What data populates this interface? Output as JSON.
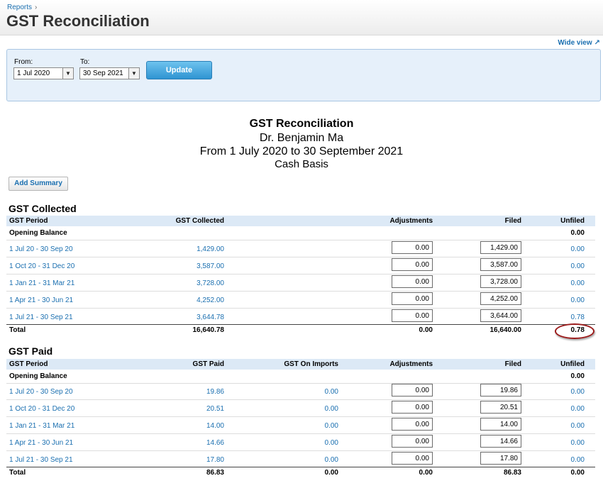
{
  "header": {
    "breadcrumb": "Reports",
    "breadcrumb_sep": "›",
    "title": "GST Reconciliation",
    "wide_view": "Wide view"
  },
  "filters": {
    "from_label": "From:",
    "from_value": "1 Jul 2020",
    "to_label": "To:",
    "to_value": "30 Sep 2021",
    "update_label": "Update"
  },
  "report": {
    "title": "GST Reconciliation",
    "org": "Dr. Benjamin Ma",
    "period": "From 1 July 2020 to 30 September 2021",
    "basis": "Cash Basis"
  },
  "add_summary": "Add Summary",
  "collected": {
    "title": "GST Collected",
    "columns": [
      "GST Period",
      "GST Collected",
      "Adjustments",
      "Filed",
      "Unfiled"
    ],
    "opening": {
      "label": "Opening Balance",
      "unfiled": "0.00"
    },
    "rows": [
      {
        "period": "1 Jul 20 - 30 Sep 20",
        "amount": "1,429.00",
        "adjustments": "0.00",
        "filed": "1,429.00",
        "unfiled": "0.00"
      },
      {
        "period": "1 Oct 20 - 31 Dec 20",
        "amount": "3,587.00",
        "adjustments": "0.00",
        "filed": "3,587.00",
        "unfiled": "0.00"
      },
      {
        "period": "1 Jan 21 - 31 Mar 21",
        "amount": "3,728.00",
        "adjustments": "0.00",
        "filed": "3,728.00",
        "unfiled": "0.00"
      },
      {
        "period": "1 Apr 21 - 30 Jun 21",
        "amount": "4,252.00",
        "adjustments": "0.00",
        "filed": "4,252.00",
        "unfiled": "0.00"
      },
      {
        "period": "1 Jul 21 - 30 Sep 21",
        "amount": "3,644.78",
        "adjustments": "0.00",
        "filed": "3,644.00",
        "unfiled": "0.78"
      }
    ],
    "total": {
      "label": "Total",
      "amount": "16,640.78",
      "adjustments": "0.00",
      "filed": "16,640.00",
      "unfiled": "0.78"
    }
  },
  "paid": {
    "title": "GST Paid",
    "columns": [
      "GST Period",
      "GST Paid",
      "GST On Imports",
      "Adjustments",
      "Filed",
      "Unfiled"
    ],
    "opening": {
      "label": "Opening Balance",
      "unfiled": "0.00"
    },
    "rows": [
      {
        "period": "1 Jul 20 - 30 Sep 20",
        "amount": "19.86",
        "imports": "0.00",
        "adjustments": "0.00",
        "filed": "19.86",
        "unfiled": "0.00"
      },
      {
        "period": "1 Oct 20 - 31 Dec 20",
        "amount": "20.51",
        "imports": "0.00",
        "adjustments": "0.00",
        "filed": "20.51",
        "unfiled": "0.00"
      },
      {
        "period": "1 Jan 21 - 31 Mar 21",
        "amount": "14.00",
        "imports": "0.00",
        "adjustments": "0.00",
        "filed": "14.00",
        "unfiled": "0.00"
      },
      {
        "period": "1 Apr 21 - 30 Jun 21",
        "amount": "14.66",
        "imports": "0.00",
        "adjustments": "0.00",
        "filed": "14.66",
        "unfiled": "0.00"
      },
      {
        "period": "1 Jul 21 - 30 Sep 21",
        "amount": "17.80",
        "imports": "0.00",
        "adjustments": "0.00",
        "filed": "17.80",
        "unfiled": "0.00"
      }
    ],
    "total": {
      "label": "Total",
      "amount": "86.83",
      "imports": "0.00",
      "adjustments": "0.00",
      "filed": "86.83",
      "unfiled": "0.00"
    }
  },
  "colors": {
    "link": "#1a6fb0",
    "header_bg": "#dce9f6",
    "panel_bg": "#e6f0fa",
    "highlight_circle": "#9b1b1b"
  }
}
